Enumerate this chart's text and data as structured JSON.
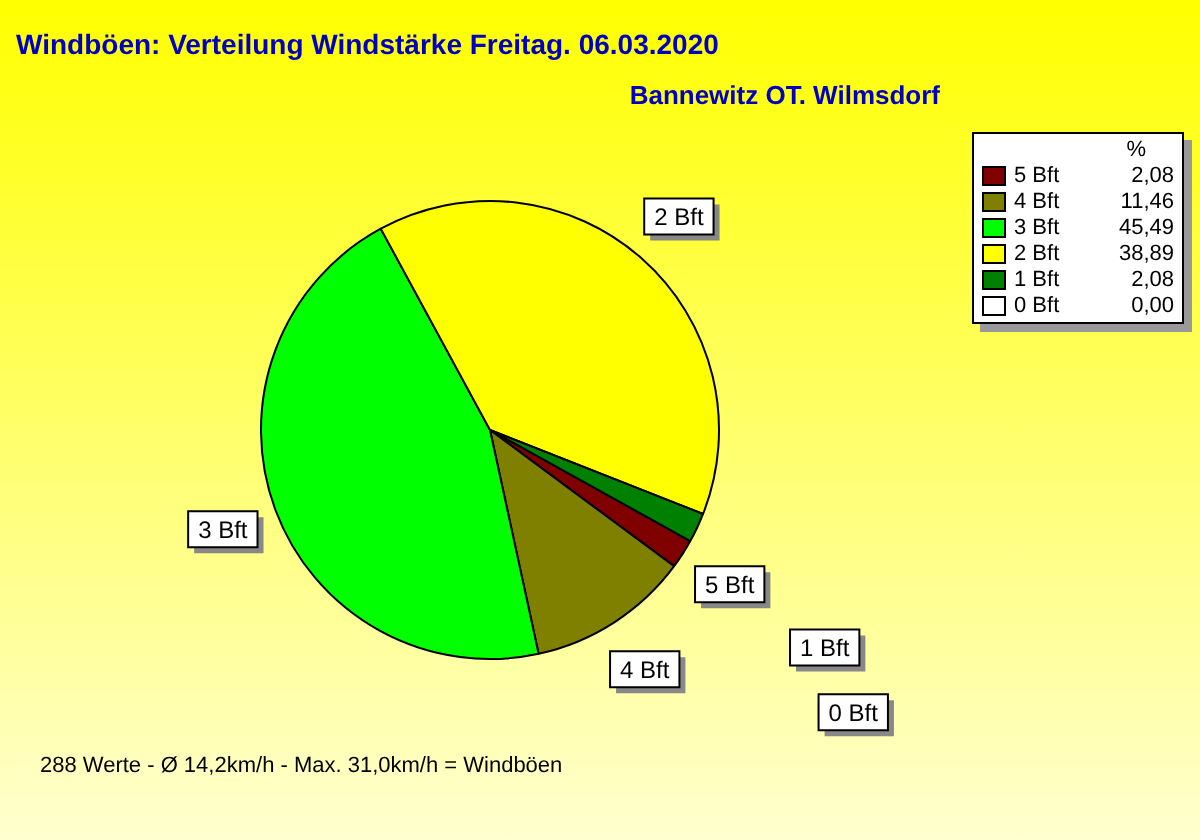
{
  "chart_data": {
    "type": "pie",
    "title": "Windböen: Verteilung Windstärke  Freitag. 06.03.2020",
    "subtitle": "Bannewitz OT. Wilmsdorf",
    "legend_title": "%",
    "legend": "top right",
    "categories": [
      "5 Bft",
      "4 Bft",
      "3 Bft",
      "2 Bft",
      "1 Bft",
      "0 Bft"
    ],
    "values": [
      2.08,
      11.46,
      45.49,
      38.89,
      2.08,
      0.0
    ],
    "value_labels": [
      "2,08",
      "11,46",
      "45,49",
      "38,89",
      "2,08",
      "0,00"
    ],
    "colors": [
      "#800000",
      "#808000",
      "#00ff00",
      "#ffff00",
      "#008000",
      "#ffffff"
    ],
    "annotations": [
      "288 Werte   -   Ø 14,2km/h  -  Max. 31,0km/h = Windböen"
    ]
  }
}
